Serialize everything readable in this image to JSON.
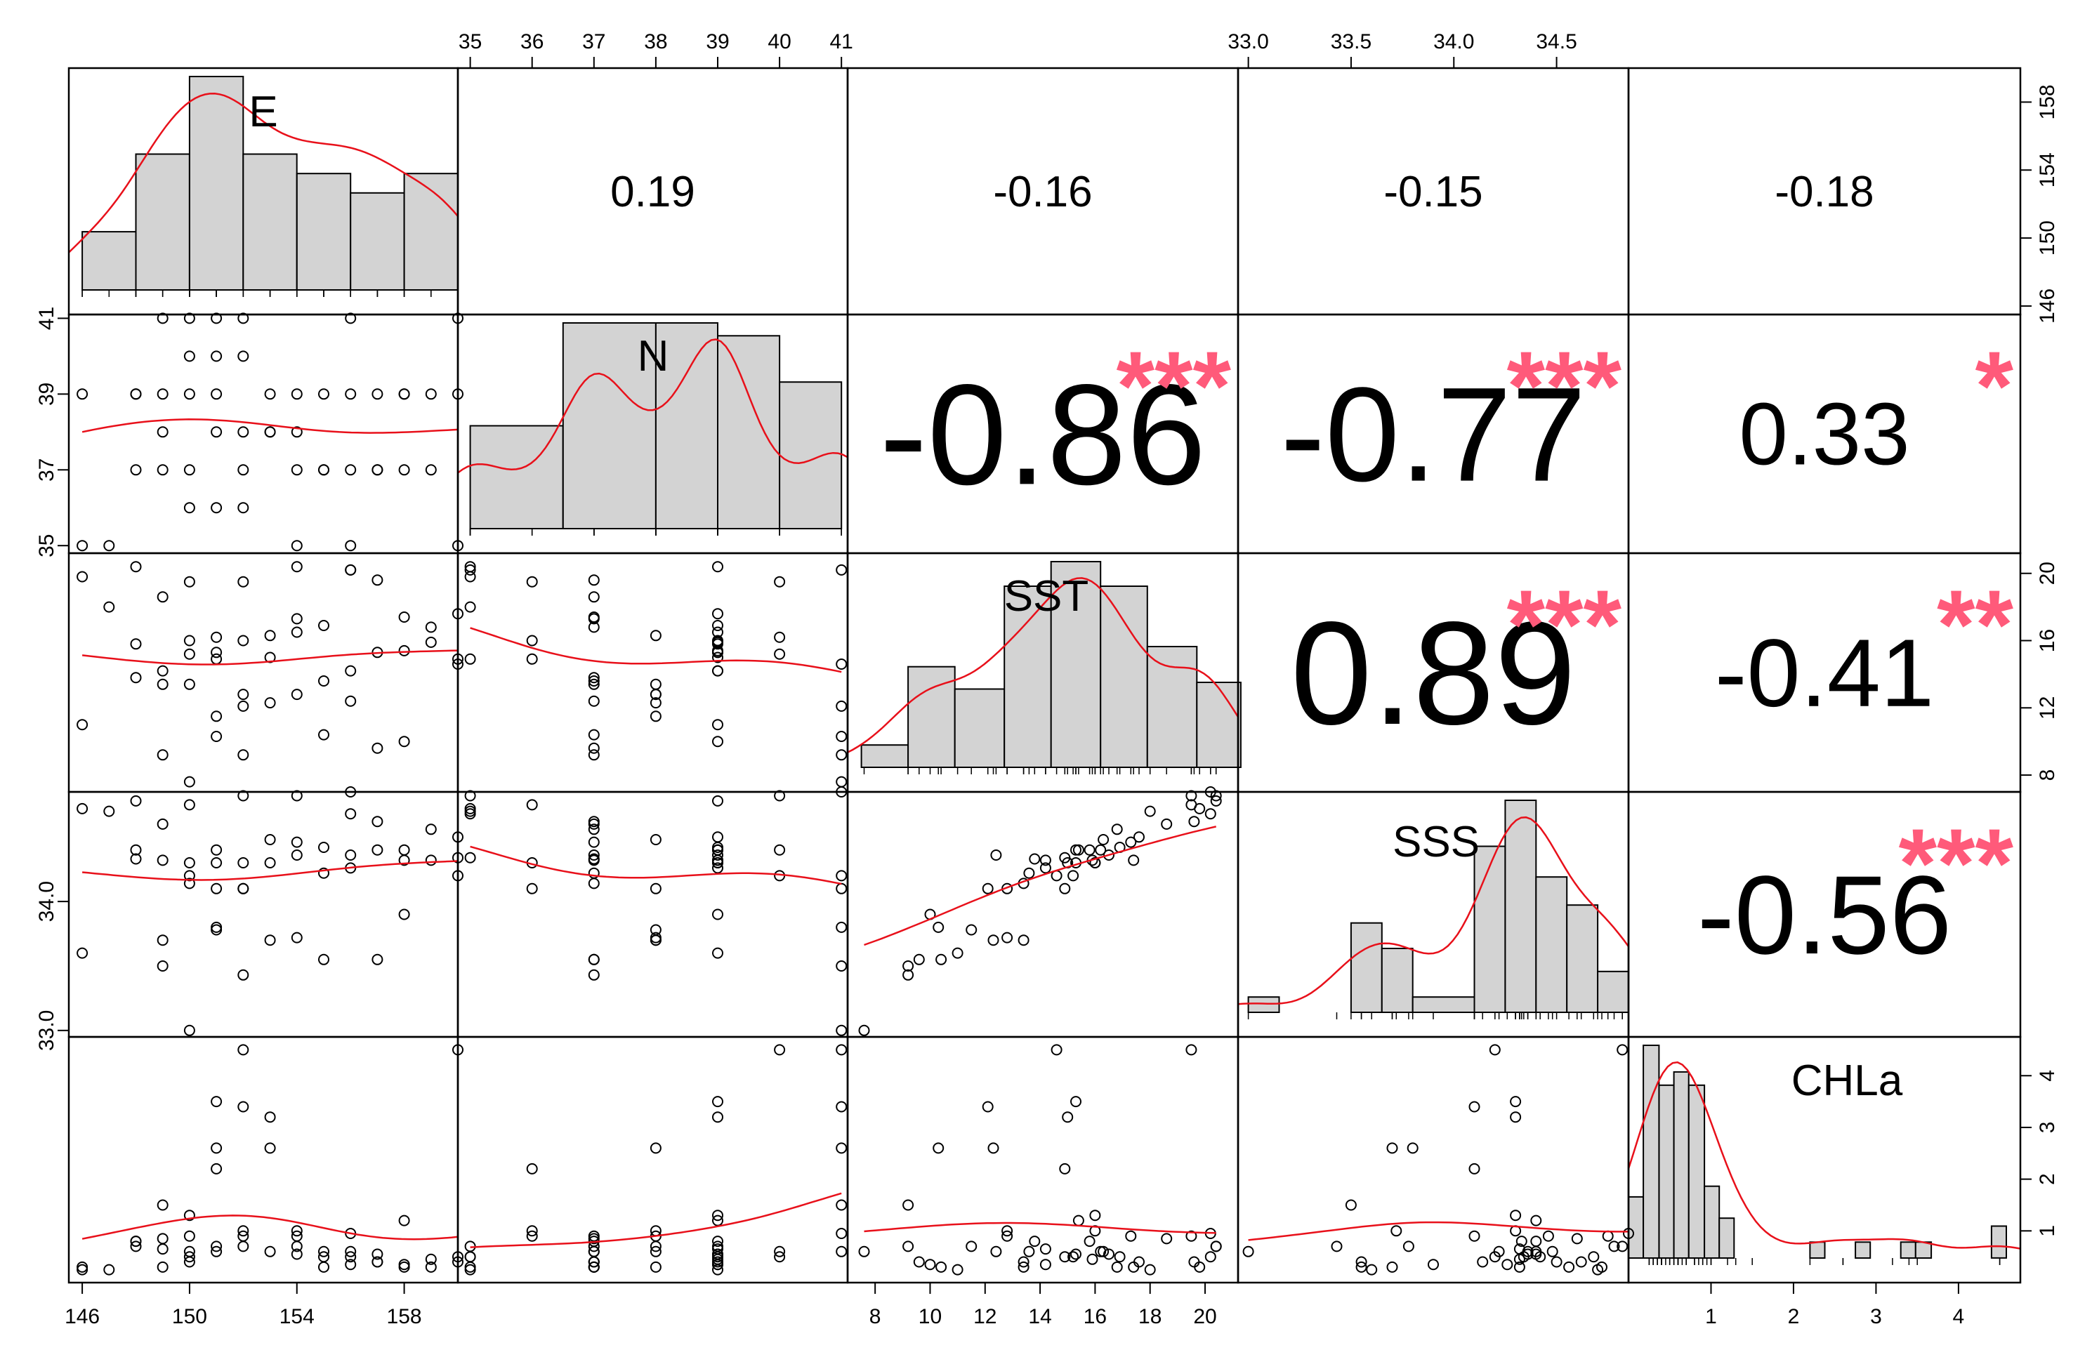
{
  "chart_data": {
    "type": "scatter-matrix",
    "title": "",
    "variables": [
      "E",
      "N",
      "SST",
      "SSS",
      "CHLa"
    ],
    "ranges": {
      "E": [
        145.5,
        160.0
      ],
      "N": [
        34.8,
        41.1
      ],
      "SST": [
        7.0,
        21.2
      ],
      "SSS": [
        32.95,
        34.85
      ],
      "CHLa": [
        0.0,
        4.75
      ]
    },
    "ticks": {
      "E": [
        "146",
        "150",
        "154",
        "158"
      ],
      "N": [
        "35",
        "36",
        "37",
        "38",
        "39",
        "40",
        "41"
      ],
      "N_left": [
        "35",
        "37",
        "39",
        "41"
      ],
      "SST_bottom": [
        "8",
        "10",
        "12",
        "14",
        "16",
        "18",
        "20"
      ],
      "SST_right": [
        "8",
        "12",
        "16",
        "20"
      ],
      "SSS_top": [
        "33.0",
        "33.5",
        "34.0",
        "34.5"
      ],
      "SSS_left": [
        "33.0",
        "34.0"
      ],
      "CHLa_bottom": [
        "1",
        "2",
        "3",
        "4"
      ],
      "CHLa_right": [
        "1",
        "2",
        "3",
        "4"
      ],
      "E_right": [
        "146",
        "150",
        "154",
        "158"
      ]
    },
    "correlations": [
      {
        "pair": [
          "E",
          "N"
        ],
        "value": "0.19",
        "stars": ""
      },
      {
        "pair": [
          "E",
          "SST"
        ],
        "value": "-0.16",
        "stars": ""
      },
      {
        "pair": [
          "E",
          "SSS"
        ],
        "value": "-0.15",
        "stars": ""
      },
      {
        "pair": [
          "E",
          "CHLa"
        ],
        "value": "-0.18",
        "stars": ""
      },
      {
        "pair": [
          "N",
          "SST"
        ],
        "value": "-0.86",
        "stars": "***"
      },
      {
        "pair": [
          "N",
          "SSS"
        ],
        "value": "-0.77",
        "stars": "***"
      },
      {
        "pair": [
          "N",
          "CHLa"
        ],
        "value": "0.33",
        "stars": "*"
      },
      {
        "pair": [
          "SST",
          "SSS"
        ],
        "value": "0.89",
        "stars": "***"
      },
      {
        "pair": [
          "SST",
          "CHLa"
        ],
        "value": "-0.41",
        "stars": "**"
      },
      {
        "pair": [
          "SSS",
          "CHLa"
        ],
        "value": "-0.56",
        "stars": "***"
      }
    ],
    "histograms": {
      "E": {
        "breaks": [
          146,
          148,
          150,
          152,
          154,
          156,
          158,
          160
        ],
        "counts": [
          3,
          7,
          11,
          7,
          6,
          5,
          6
        ]
      },
      "N": {
        "breaks": [
          35,
          36.5,
          38,
          39,
          40,
          41
        ],
        "counts": [
          4,
          8,
          8,
          7.5,
          5.7
        ]
      },
      "SST": {
        "breaks": [
          7.5,
          9.2,
          10.9,
          12.7,
          14.4,
          16.2,
          17.9,
          19.7,
          21.3
        ],
        "counts": [
          1,
          4.5,
          3.5,
          8.1,
          9.2,
          8.1,
          5.4,
          3.8
        ]
      },
      "SSS": {
        "breaks": [
          33.0,
          33.15,
          33.5,
          33.65,
          33.8,
          34.1,
          34.25,
          34.4,
          34.55,
          34.7,
          34.85
        ],
        "counts": [
          0.6,
          0,
          3.5,
          2.5,
          0.6,
          6.5,
          8.3,
          5.3,
          4.2,
          1.6
        ]
      },
      "CHLa": {
        "breaks": [
          0.0,
          0.18,
          0.37,
          0.55,
          0.73,
          0.92,
          1.1,
          1.28,
          1.47,
          2.2,
          2.38,
          2.57,
          2.75,
          2.93,
          3.12,
          3.3,
          3.48,
          3.67,
          3.85,
          4.4,
          4.58,
          4.75
        ],
        "counts": [
          2.3,
          8.0,
          6.5,
          7.0,
          6.5,
          2.7,
          1.5,
          0,
          0,
          0.6,
          0,
          0,
          0.6,
          0,
          0,
          0.6,
          0.6,
          0,
          0,
          1.2,
          0
        ]
      }
    },
    "observations": {
      "E": [
        146,
        147,
        148,
        148,
        149,
        149,
        150,
        150,
        150,
        151,
        151,
        151,
        152,
        152,
        152,
        153,
        153,
        154,
        154,
        154,
        155,
        155,
        156,
        156,
        156,
        157,
        157,
        158,
        158,
        159,
        159,
        160,
        160,
        150,
        152,
        151,
        148,
        153,
        149,
        157,
        155,
        146,
        154,
        158,
        160,
        152,
        151,
        149,
        150,
        156
      ],
      "N": [
        35,
        35,
        37,
        39,
        39,
        37,
        40,
        39,
        37,
        38,
        39,
        40,
        40,
        38,
        37,
        39,
        38,
        35,
        37,
        39,
        37,
        39,
        35,
        37,
        39,
        37,
        39,
        37,
        39,
        37,
        39,
        35,
        39,
        36,
        36,
        36,
        39,
        38,
        38,
        37,
        37,
        39,
        38,
        39,
        41,
        41,
        41,
        41,
        41,
        41
      ],
      "SST": [
        19.8,
        18.0,
        13.8,
        20.4,
        14.2,
        18.6,
        15.2,
        16.0,
        13.4,
        11.5,
        15.3,
        16.2,
        19.5,
        12.8,
        9.2,
        15.0,
        12.3,
        20.4,
        17.3,
        16.5,
        13.6,
        16.9,
        20.2,
        12.4,
        14.2,
        19.6,
        15.3,
        17.4,
        15.4,
        16.8,
        15.9,
        14.9,
        17.6,
        19.5,
        16.0,
        14.9,
        15.8,
        16.3,
        13.4,
        9.6,
        10.4,
        11.0,
        12.8,
        10.0,
        14.6,
        12.1,
        10.3,
        9.2,
        7.6,
        20.2
      ],
      "SSS": [
        34.72,
        34.7,
        34.33,
        34.78,
        34.32,
        34.6,
        34.2,
        34.3,
        34.14,
        33.78,
        34.3,
        34.4,
        34.82,
        34.1,
        33.43,
        34.3,
        33.7,
        34.82,
        34.46,
        34.36,
        34.22,
        34.42,
        34.68,
        34.36,
        34.26,
        34.62,
        34.4,
        34.32,
        34.4,
        34.56,
        34.32,
        34.34,
        34.5,
        34.75,
        34.3,
        34.1,
        34.4,
        34.48,
        33.7,
        33.55,
        33.55,
        33.6,
        33.72,
        33.9,
        34.2,
        34.1,
        33.8,
        33.5,
        33.0,
        34.85
      ],
      "CHLa": [
        0.3,
        0.25,
        0.8,
        0.7,
        0.65,
        0.85,
        0.5,
        1.3,
        0.4,
        0.7,
        3.5,
        0.6,
        4.5,
        0.9,
        0.7,
        3.2,
        2.6,
        0.7,
        0.9,
        0.55,
        0.6,
        0.5,
        0.5,
        0.6,
        0.35,
        0.4,
        0.55,
        0.3,
        1.2,
        0.3,
        0.45,
        0.5,
        0.4,
        0.9,
        1.0,
        2.2,
        0.8,
        0.6,
        0.3,
        0.4,
        0.3,
        0.25,
        1.0,
        0.35,
        4.5,
        3.4,
        2.6,
        1.5,
        0.6,
        0.95
      ]
    },
    "smoother_color": "#e8101a",
    "hist_fill": "#d3d3d3",
    "star_color": "#ff5a7a"
  }
}
